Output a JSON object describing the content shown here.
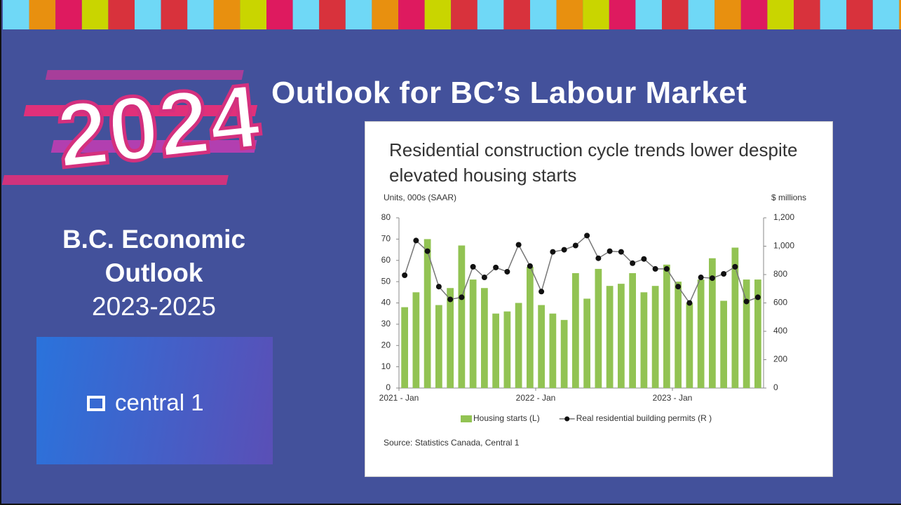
{
  "slide": {
    "logo_text": "2024",
    "title": "Outlook for BC’s Labour Market",
    "outlook_title": "B.C. Economic Outlook",
    "outlook_years": "2023-2025",
    "brand": "central 1"
  },
  "chart_data": {
    "type": "bar",
    "title": "Residential construction cycle trends lower despite elevated housing starts",
    "y_label": "Units, 000s (SAAR)",
    "y2_label": "$ millions",
    "source": "Source: Statistics Canada, Central 1",
    "categories": [
      "2021 - Jan",
      null,
      null,
      null,
      null,
      null,
      null,
      null,
      null,
      null,
      null,
      null,
      "2022 - Jan",
      null,
      null,
      null,
      null,
      null,
      null,
      null,
      null,
      null,
      null,
      null,
      "2023 - Jan",
      null,
      null,
      null,
      null,
      null,
      null,
      null
    ],
    "series": [
      {
        "name": "Housing starts (L)",
        "type": "bar",
        "color": "#92c353",
        "values": [
          38,
          45,
          70,
          39,
          47,
          67,
          51,
          47,
          35,
          36,
          40,
          57,
          39,
          35,
          32,
          54,
          42,
          56,
          48,
          49,
          54,
          45,
          48,
          58,
          50,
          40,
          51,
          61,
          41,
          66,
          51,
          51
        ]
      },
      {
        "name": "Real residential building permits (R )",
        "type": "line",
        "axis": "y2",
        "color": "#111111",
        "values": [
          795,
          1040,
          965,
          715,
          625,
          640,
          855,
          780,
          850,
          820,
          1010,
          860,
          680,
          960,
          975,
          1005,
          1075,
          915,
          965,
          960,
          880,
          910,
          840,
          840,
          715,
          600,
          780,
          775,
          805,
          855,
          610,
          640
        ]
      }
    ],
    "ylim": [
      0,
      80
    ],
    "yticks": [
      0,
      10,
      20,
      30,
      40,
      50,
      60,
      70,
      80
    ],
    "y2lim": [
      0,
      1200
    ],
    "y2ticks": [
      0,
      200,
      400,
      600,
      800,
      {
        "value": 1000,
        "label": "1,000"
      },
      {
        "value": 1200,
        "label": "1,200"
      }
    ],
    "grid": false,
    "legend": "bottom"
  }
}
